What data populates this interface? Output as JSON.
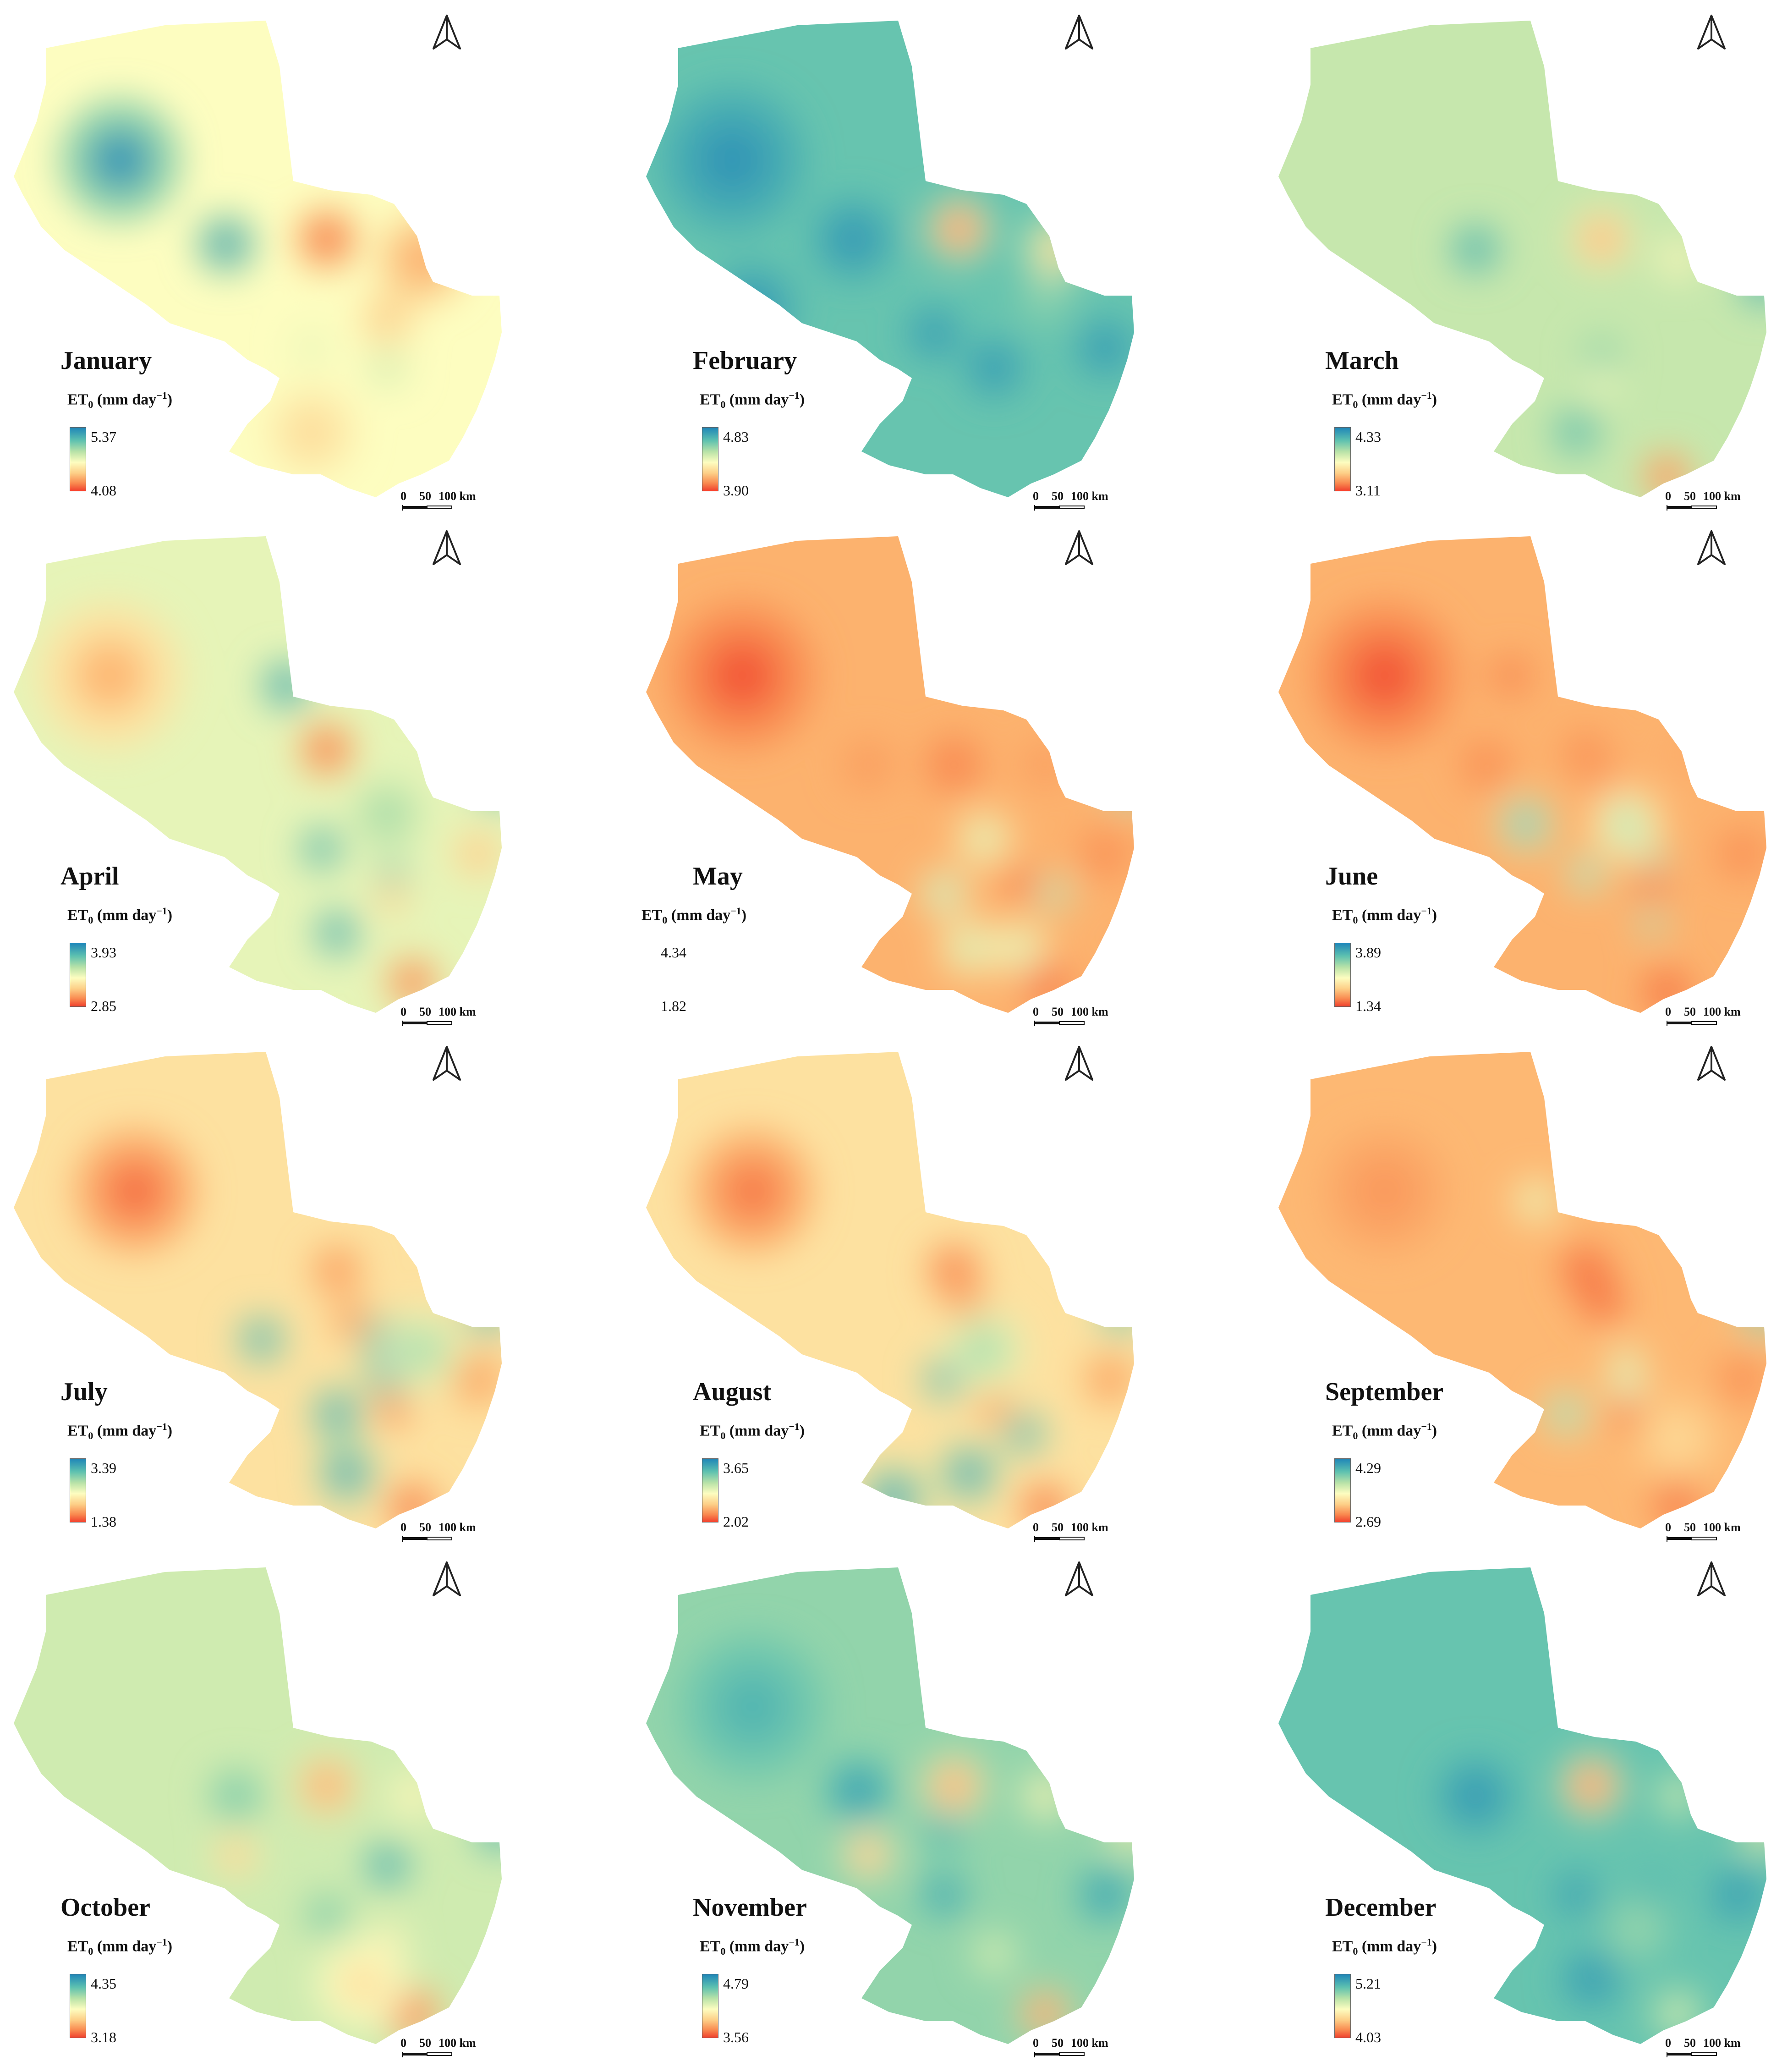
{
  "unit_label": {
    "prefix": "ET",
    "sub": "0",
    "suffix": " (mm day",
    "sup": "−1",
    "close": ")"
  },
  "scale_bar": {
    "zero": "0",
    "mid": "50",
    "end": "100 km"
  },
  "colors": {
    "high": "#1f86b8",
    "mid": "#fdfdc0",
    "low": "#f0412e"
  },
  "panels": [
    {
      "month": "January",
      "max": "5.37",
      "min": "4.08",
      "base": 0.5,
      "spots": [
        [
          0.22,
          0.3,
          0.95,
          110
        ],
        [
          0.43,
          0.47,
          0.95,
          55
        ],
        [
          0.63,
          0.46,
          0.05,
          55
        ],
        [
          0.82,
          0.5,
          0.25,
          80
        ],
        [
          0.75,
          0.62,
          0.35,
          50
        ],
        [
          0.6,
          0.85,
          0.4,
          80
        ],
        [
          0.6,
          0.68,
          0.55,
          40
        ],
        [
          0.75,
          0.72,
          0.6,
          40
        ]
      ]
    },
    {
      "month": "February",
      "max": "4.83",
      "min": "3.90",
      "base": 0.8,
      "spots": [
        [
          0.18,
          0.3,
          0.95,
          130
        ],
        [
          0.42,
          0.46,
          0.95,
          75
        ],
        [
          0.63,
          0.44,
          0.05,
          55
        ],
        [
          0.82,
          0.48,
          0.35,
          55
        ],
        [
          0.22,
          0.6,
          0.95,
          80
        ],
        [
          0.58,
          0.65,
          0.95,
          50
        ],
        [
          0.7,
          0.72,
          0.95,
          55
        ],
        [
          0.92,
          0.68,
          0.95,
          55
        ],
        [
          0.8,
          0.58,
          0.7,
          45
        ]
      ]
    },
    {
      "month": "March",
      "max": "4.33",
      "min": "3.11",
      "base": 0.62,
      "spots": [
        [
          0.4,
          0.48,
          0.9,
          45
        ],
        [
          0.65,
          0.46,
          0.25,
          55
        ],
        [
          0.8,
          0.5,
          0.45,
          40
        ],
        [
          0.97,
          0.55,
          0.95,
          40
        ],
        [
          0.65,
          0.7,
          0.75,
          40
        ],
        [
          0.6,
          0.85,
          0.85,
          45
        ],
        [
          0.78,
          0.94,
          0.05,
          45
        ],
        [
          0.65,
          0.75,
          0.5,
          30
        ]
      ]
    },
    {
      "month": "April",
      "max": "3.93",
      "min": "2.85",
      "base": 0.55,
      "spots": [
        [
          0.2,
          0.3,
          0.3,
          130
        ],
        [
          0.55,
          0.32,
          0.95,
          45
        ],
        [
          0.63,
          0.45,
          0.05,
          50
        ],
        [
          0.97,
          0.52,
          0.95,
          40
        ],
        [
          0.62,
          0.65,
          0.9,
          40
        ],
        [
          0.76,
          0.7,
          0.9,
          25
        ],
        [
          0.76,
          0.75,
          0.3,
          30
        ],
        [
          0.65,
          0.82,
          0.95,
          40
        ],
        [
          0.8,
          0.92,
          0.05,
          45
        ],
        [
          0.93,
          0.66,
          0.3,
          45
        ],
        [
          0.75,
          0.58,
          0.7,
          60
        ]
      ]
    },
    {
      "month": "May",
      "max": "4.34",
      "min": "1.82",
      "base": 0.28,
      "alt": true,
      "spots": [
        [
          0.2,
          0.3,
          0.05,
          130
        ],
        [
          0.45,
          0.48,
          0.2,
          50
        ],
        [
          0.62,
          0.48,
          0.12,
          55
        ],
        [
          0.8,
          0.48,
          0.2,
          45
        ],
        [
          0.97,
          0.52,
          0.95,
          40
        ],
        [
          0.68,
          0.63,
          0.6,
          50
        ],
        [
          0.75,
          0.72,
          0.05,
          30
        ],
        [
          0.6,
          0.74,
          0.75,
          40
        ],
        [
          0.82,
          0.74,
          0.85,
          30
        ],
        [
          0.92,
          0.66,
          0.15,
          50
        ],
        [
          0.8,
          0.92,
          0.05,
          45
        ],
        [
          0.65,
          0.85,
          0.65,
          50
        ],
        [
          0.75,
          0.85,
          0.6,
          50
        ]
      ]
    },
    {
      "month": "June",
      "max": "3.89",
      "min": "1.34",
      "base": 0.28,
      "spots": [
        [
          0.22,
          0.3,
          0.05,
          130
        ],
        [
          0.47,
          0.3,
          0.12,
          40
        ],
        [
          0.42,
          0.48,
          0.15,
          50
        ],
        [
          0.62,
          0.46,
          0.15,
          45
        ],
        [
          0.67,
          0.54,
          0.15,
          35
        ],
        [
          0.82,
          0.46,
          0.25,
          40
        ],
        [
          0.5,
          0.6,
          0.9,
          50
        ],
        [
          0.62,
          0.7,
          0.85,
          35
        ],
        [
          0.75,
          0.72,
          0.05,
          30
        ],
        [
          0.75,
          0.67,
          0.9,
          25
        ],
        [
          0.75,
          0.8,
          0.9,
          25
        ],
        [
          0.93,
          0.66,
          0.15,
          50
        ],
        [
          0.78,
          0.94,
          0.05,
          45
        ],
        [
          0.7,
          0.6,
          0.7,
          60
        ]
      ]
    },
    {
      "month": "July",
      "max": "3.39",
      "min": "1.38",
      "base": 0.42,
      "spots": [
        [
          0.25,
          0.3,
          0.1,
          110
        ],
        [
          0.65,
          0.46,
          0.15,
          45
        ],
        [
          0.68,
          0.56,
          0.15,
          35
        ],
        [
          0.5,
          0.6,
          0.95,
          45
        ],
        [
          0.74,
          0.6,
          0.95,
          40
        ],
        [
          0.75,
          0.67,
          0.95,
          40
        ],
        [
          0.76,
          0.74,
          0.05,
          30
        ],
        [
          0.65,
          0.75,
          0.95,
          50
        ],
        [
          0.67,
          0.87,
          0.95,
          55
        ],
        [
          0.95,
          0.55,
          0.95,
          40
        ],
        [
          0.93,
          0.68,
          0.2,
          50
        ],
        [
          0.8,
          0.94,
          0.05,
          45
        ],
        [
          0.82,
          0.62,
          0.7,
          70
        ]
      ]
    },
    {
      "month": "August",
      "max": "3.65",
      "min": "2.02",
      "base": 0.42,
      "spots": [
        [
          0.22,
          0.3,
          0.12,
          110
        ],
        [
          0.62,
          0.46,
          0.1,
          50
        ],
        [
          0.65,
          0.54,
          0.15,
          40
        ],
        [
          0.6,
          0.68,
          0.95,
          40
        ],
        [
          0.7,
          0.74,
          0.15,
          30
        ],
        [
          0.76,
          0.79,
          0.95,
          40
        ],
        [
          0.65,
          0.87,
          0.95,
          55
        ],
        [
          0.5,
          0.92,
          0.95,
          60
        ],
        [
          0.95,
          0.55,
          0.9,
          40
        ],
        [
          0.93,
          0.68,
          0.2,
          50
        ],
        [
          0.8,
          0.94,
          0.05,
          45
        ],
        [
          0.68,
          0.62,
          0.7,
          70
        ]
      ]
    },
    {
      "month": "September",
      "max": "4.29",
      "min": "2.69",
      "base": 0.3,
      "spots": [
        [
          0.22,
          0.3,
          0.2,
          110
        ],
        [
          0.52,
          0.32,
          0.6,
          40
        ],
        [
          0.62,
          0.46,
          0.05,
          50
        ],
        [
          0.65,
          0.52,
          0.05,
          45
        ],
        [
          0.7,
          0.65,
          0.7,
          30
        ],
        [
          0.7,
          0.7,
          0.7,
          30
        ],
        [
          0.7,
          0.75,
          0.05,
          30
        ],
        [
          0.58,
          0.75,
          0.85,
          40
        ],
        [
          0.97,
          0.55,
          0.95,
          40
        ],
        [
          0.93,
          0.68,
          0.15,
          50
        ],
        [
          0.8,
          0.93,
          0.05,
          45
        ],
        [
          0.8,
          0.8,
          0.4,
          80
        ]
      ]
    },
    {
      "month": "October",
      "max": "4.35",
      "min": "3.18",
      "base": 0.6,
      "spots": [
        [
          0.45,
          0.48,
          0.8,
          50
        ],
        [
          0.63,
          0.46,
          0.2,
          55
        ],
        [
          0.8,
          0.48,
          0.45,
          45
        ],
        [
          0.45,
          0.6,
          0.3,
          40
        ],
        [
          0.97,
          0.55,
          0.95,
          40
        ],
        [
          0.75,
          0.62,
          0.95,
          40
        ],
        [
          0.63,
          0.72,
          0.8,
          40
        ],
        [
          0.75,
          0.78,
          0.4,
          35
        ],
        [
          0.8,
          0.92,
          0.05,
          50
        ],
        [
          0.7,
          0.86,
          0.4,
          80
        ]
      ]
    },
    {
      "month": "November",
      "max": "4.79",
      "min": "3.56",
      "base": 0.72,
      "spots": [
        [
          0.22,
          0.3,
          0.85,
          130
        ],
        [
          0.43,
          0.47,
          0.95,
          60
        ],
        [
          0.62,
          0.46,
          0.15,
          55
        ],
        [
          0.8,
          0.48,
          0.45,
          45
        ],
        [
          0.45,
          0.6,
          0.2,
          45
        ],
        [
          0.6,
          0.55,
          0.9,
          35
        ],
        [
          0.6,
          0.68,
          0.95,
          40
        ],
        [
          0.92,
          0.68,
          0.95,
          50
        ],
        [
          0.97,
          0.55,
          0.4,
          40
        ],
        [
          0.8,
          0.92,
          0.05,
          45
        ],
        [
          0.7,
          0.8,
          0.55,
          40
        ]
      ]
    },
    {
      "month": "December",
      "max": "5.21",
      "min": "4.03",
      "base": 0.8,
      "spots": [
        [
          0.4,
          0.48,
          0.95,
          70
        ],
        [
          0.63,
          0.46,
          0.05,
          55
        ],
        [
          0.8,
          0.48,
          0.55,
          40
        ],
        [
          0.97,
          0.55,
          0.4,
          40
        ],
        [
          0.6,
          0.68,
          0.95,
          40
        ],
        [
          0.75,
          0.67,
          0.85,
          35
        ],
        [
          0.92,
          0.68,
          0.95,
          50
        ],
        [
          0.63,
          0.85,
          0.95,
          55
        ],
        [
          0.8,
          0.92,
          0.55,
          45
        ],
        [
          0.72,
          0.75,
          0.7,
          60
        ]
      ]
    }
  ]
}
